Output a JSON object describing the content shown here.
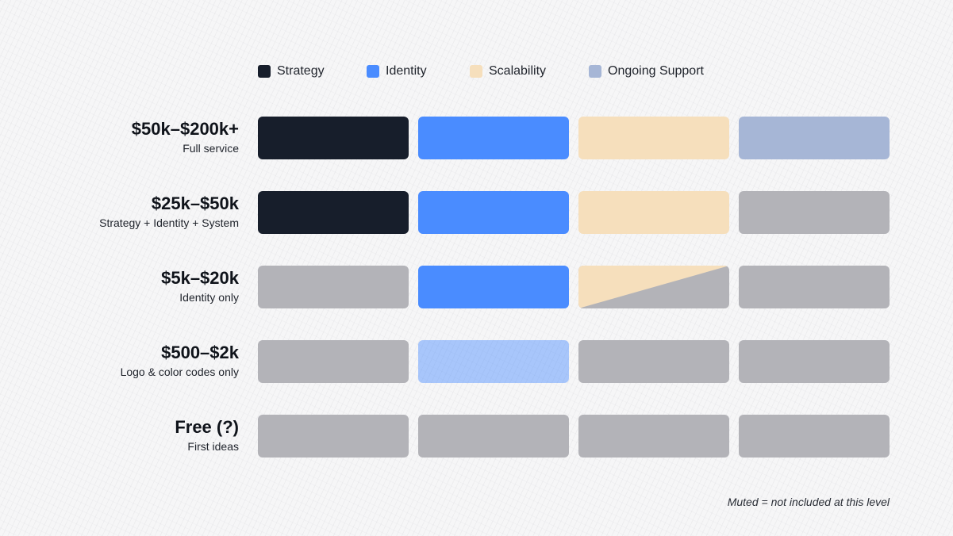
{
  "chart_data": {
    "type": "table",
    "title": "",
    "columns": [
      {
        "name": "Strategy",
        "color": "#171e2b"
      },
      {
        "name": "Identity",
        "color": "#4a8cff"
      },
      {
        "name": "Scalability",
        "color": "#f6dfbc"
      },
      {
        "name": "Ongoing Support",
        "color": "#a6b6d6"
      }
    ],
    "muted_color": "#b3b3b8",
    "rows": [
      {
        "price": "$50k–$200k+",
        "scope": "Full service",
        "cells": [
          "full",
          "full",
          "full",
          "full"
        ]
      },
      {
        "price": "$25k–$50k",
        "scope": "Strategy + Identity + System",
        "cells": [
          "full",
          "full",
          "full",
          "muted"
        ]
      },
      {
        "price": "$5k–$20k",
        "scope": "Identity only",
        "cells": [
          "muted",
          "full",
          "partial",
          "muted"
        ]
      },
      {
        "price": "$500–$2k",
        "scope": "Logo & color codes only",
        "cells": [
          "muted",
          "light",
          "muted",
          "muted"
        ]
      },
      {
        "price": "Free (?)",
        "scope": "First ideas",
        "cells": [
          "muted",
          "muted",
          "muted",
          "muted"
        ]
      }
    ],
    "legend_position": "top",
    "footnote": "Muted = not included at this level"
  }
}
